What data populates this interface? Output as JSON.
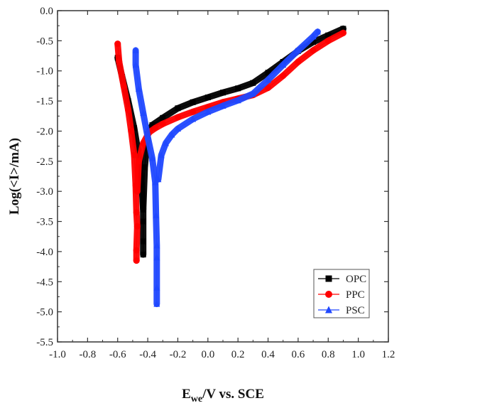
{
  "chart_data": {
    "type": "scatter",
    "title": "",
    "xlabel_main": "E",
    "xlabel_sub": "we",
    "xlabel_rest": "/V vs. SCE",
    "ylabel": "Log(<I>/mA)",
    "xlim": [
      -1.0,
      1.2
    ],
    "ylim": [
      -5.5,
      0.0
    ],
    "xticks": [
      "-1.0",
      "-0.8",
      "-0.6",
      "-0.4",
      "-0.2",
      "0.0",
      "0.2",
      "0.4",
      "0.6",
      "0.8",
      "1.0",
      "1.2"
    ],
    "yticks": [
      "0.0",
      "-0.5",
      "-1.0",
      "-1.5",
      "-2.0",
      "-2.5",
      "-3.0",
      "-3.5",
      "-4.0",
      "-4.5",
      "-5.0",
      "-5.5"
    ],
    "grid": false,
    "legend_position": "bottom-right",
    "series": [
      {
        "name": "OPC",
        "color": "#000000",
        "marker": "square",
        "branches": [
          [
            [
              -0.6,
              -0.78
            ],
            [
              -0.57,
              -1.1
            ],
            [
              -0.53,
              -1.5
            ],
            [
              -0.49,
              -1.95
            ],
            [
              -0.46,
              -2.4
            ],
            [
              -0.44,
              -2.9
            ],
            [
              -0.43,
              -3.3
            ],
            [
              -0.43,
              -3.5
            ],
            [
              -0.43,
              -3.83
            ],
            [
              -0.43,
              -4.05
            ]
          ],
          [
            [
              -0.43,
              -3.3
            ],
            [
              -0.42,
              -2.6
            ],
            [
              -0.4,
              -2.05
            ],
            [
              -0.37,
              -1.9
            ],
            [
              -0.3,
              -1.78
            ],
            [
              -0.2,
              -1.62
            ],
            [
              -0.1,
              -1.52
            ],
            [
              0.0,
              -1.44
            ],
            [
              0.1,
              -1.36
            ],
            [
              0.2,
              -1.29
            ],
            [
              0.3,
              -1.2
            ],
            [
              0.4,
              -1.03
            ],
            [
              0.5,
              -0.85
            ],
            [
              0.6,
              -0.67
            ],
            [
              0.7,
              -0.52
            ],
            [
              0.8,
              -0.41
            ],
            [
              0.9,
              -0.3
            ]
          ]
        ]
      },
      {
        "name": "PPC",
        "color": "#ff0000",
        "marker": "circle",
        "branches": [
          [
            [
              -0.6,
              -0.55
            ],
            [
              -0.59,
              -0.85
            ],
            [
              -0.56,
              -1.25
            ],
            [
              -0.53,
              -1.65
            ],
            [
              -0.51,
              -2.0
            ],
            [
              -0.49,
              -2.4
            ],
            [
              -0.48,
              -2.9
            ],
            [
              -0.475,
              -3.35
            ],
            [
              -0.47,
              -3.58
            ],
            [
              -0.475,
              -3.98
            ],
            [
              -0.475,
              -4.15
            ]
          ],
          [
            [
              -0.47,
              -3.0
            ],
            [
              -0.46,
              -2.5
            ],
            [
              -0.43,
              -2.2
            ],
            [
              -0.39,
              -2.02
            ],
            [
              -0.35,
              -1.95
            ],
            [
              -0.3,
              -1.88
            ],
            [
              -0.2,
              -1.77
            ],
            [
              -0.1,
              -1.68
            ],
            [
              0.0,
              -1.6
            ],
            [
              0.1,
              -1.52
            ],
            [
              0.2,
              -1.46
            ],
            [
              0.3,
              -1.4
            ],
            [
              0.4,
              -1.28
            ],
            [
              0.5,
              -1.08
            ],
            [
              0.6,
              -0.85
            ],
            [
              0.7,
              -0.66
            ],
            [
              0.8,
              -0.5
            ],
            [
              0.9,
              -0.37
            ]
          ]
        ]
      },
      {
        "name": "PSC",
        "color": "#2048ff",
        "marker": "triangle",
        "branches": [
          [
            [
              -0.48,
              -0.66
            ],
            [
              -0.48,
              -0.9
            ],
            [
              -0.46,
              -1.3
            ],
            [
              -0.43,
              -1.7
            ],
            [
              -0.4,
              -2.1
            ],
            [
              -0.37,
              -2.45
            ],
            [
              -0.35,
              -2.85
            ],
            [
              -0.345,
              -3.4
            ],
            [
              -0.34,
              -3.9
            ],
            [
              -0.34,
              -4.1
            ],
            [
              -0.34,
              -4.6
            ],
            [
              -0.34,
              -4.87
            ]
          ],
          [
            [
              -0.33,
              -2.8
            ],
            [
              -0.31,
              -2.4
            ],
            [
              -0.28,
              -2.2
            ],
            [
              -0.24,
              -2.06
            ],
            [
              -0.2,
              -1.96
            ],
            [
              -0.1,
              -1.8
            ],
            [
              0.0,
              -1.68
            ],
            [
              0.1,
              -1.58
            ],
            [
              0.2,
              -1.49
            ],
            [
              0.3,
              -1.38
            ],
            [
              0.4,
              -1.15
            ],
            [
              0.5,
              -0.9
            ],
            [
              0.6,
              -0.66
            ],
            [
              0.7,
              -0.43
            ],
            [
              0.73,
              -0.35
            ]
          ]
        ]
      }
    ]
  }
}
